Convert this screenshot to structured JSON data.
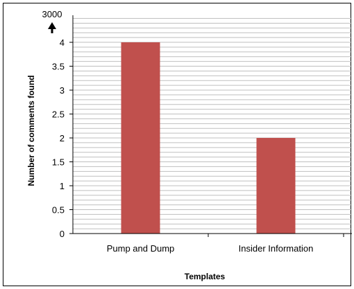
{
  "chart_data": {
    "type": "bar",
    "categories": [
      "Pump and Dump",
      "Insider Information"
    ],
    "values": [
      4,
      2
    ],
    "title": "",
    "xlabel": "Templates",
    "ylabel": "Number of comments found",
    "ylim": [
      0,
      4
    ],
    "yticks": [
      0,
      0.5,
      1,
      1.5,
      2,
      2.5,
      3,
      3.5,
      4
    ],
    "y_break_label": "3000",
    "grid": "horizontal",
    "bar_color": "#c0504d",
    "grid_color": "#bfbfbf"
  }
}
